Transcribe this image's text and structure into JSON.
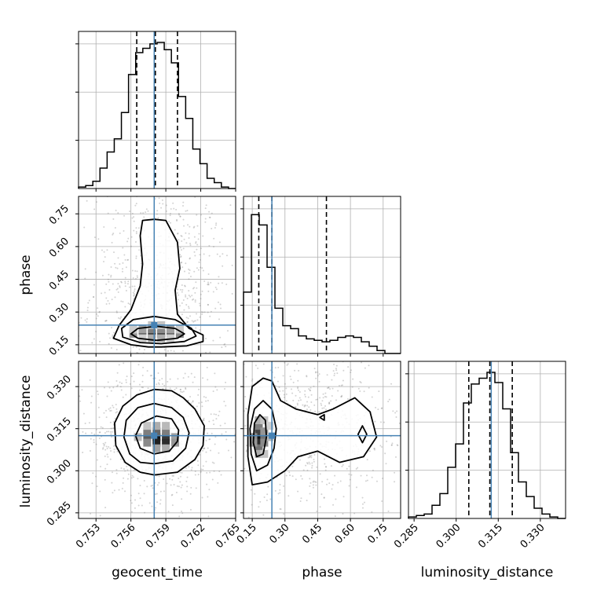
{
  "chart_data": {
    "type": "corner",
    "colors": {
      "truth": "#4682b4",
      "line": "#000000",
      "grid": "#b0b0b0"
    },
    "parameters": [
      {
        "name": "geocent_time",
        "range": [
          0.7515,
          0.765
        ],
        "ticks": [
          0.753,
          0.756,
          0.759,
          0.762,
          0.765
        ],
        "tick_labels": [
          "0.753",
          "0.756",
          "0.759",
          "0.762",
          "0.765"
        ],
        "truth": 0.758,
        "quantiles": [
          0.7565,
          0.7581,
          0.76
        ],
        "hist": [
          0.01,
          0.02,
          0.05,
          0.14,
          0.25,
          0.34,
          0.52,
          0.78,
          0.93,
          0.96,
          0.99,
          1.0,
          0.95,
          0.86,
          0.63,
          0.48,
          0.27,
          0.17,
          0.07,
          0.04,
          0.01,
          0.0
        ],
        "hist_max": 1.0
      },
      {
        "name": "phase",
        "range": [
          0.11,
          0.83
        ],
        "ticks": [
          0.15,
          0.3,
          0.45,
          0.6,
          0.75
        ],
        "tick_labels": [
          "0.15",
          "0.30",
          "0.45",
          "0.60",
          "0.75"
        ],
        "truth": 0.24,
        "quantiles": [
          0.18,
          0.24,
          0.49
        ],
        "hist": [
          0.42,
          0.95,
          0.88,
          0.59,
          0.31,
          0.19,
          0.17,
          0.12,
          0.1,
          0.09,
          0.08,
          0.09,
          0.11,
          0.12,
          0.11,
          0.08,
          0.05,
          0.02,
          0.0,
          0.0
        ],
        "hist_max": 1.0
      },
      {
        "name": "luminosity_distance",
        "range": [
          0.283,
          0.339
        ],
        "ticks": [
          0.285,
          0.3,
          0.315,
          0.33
        ],
        "tick_labels": [
          "0.285",
          "0.300",
          "0.315",
          "0.330"
        ],
        "truth": 0.3125,
        "quantiles": [
          0.3045,
          0.312,
          0.32
        ],
        "hist": [
          0.01,
          0.02,
          0.03,
          0.09,
          0.17,
          0.35,
          0.51,
          0.79,
          0.92,
          0.96,
          1.0,
          0.93,
          0.75,
          0.45,
          0.25,
          0.15,
          0.07,
          0.03,
          0.01,
          0.0
        ],
        "hist_max": 1.0
      }
    ],
    "pairs": [
      {
        "x": "geocent_time",
        "y": "phase",
        "contours": [
          [
            [
              0.7586,
              0.14
            ],
            [
              0.7608,
              0.145
            ],
            [
              0.7622,
              0.165
            ],
            [
              0.7622,
              0.195
            ],
            [
              0.761,
              0.225
            ],
            [
              0.76,
              0.29
            ],
            [
              0.7598,
              0.4
            ],
            [
              0.7602,
              0.5
            ],
            [
              0.76,
              0.62
            ],
            [
              0.7594,
              0.68
            ],
            [
              0.759,
              0.72
            ],
            [
              0.758,
              0.725
            ],
            [
              0.757,
              0.72
            ],
            [
              0.7568,
              0.65
            ],
            [
              0.757,
              0.52
            ],
            [
              0.7568,
              0.42
            ],
            [
              0.756,
              0.31
            ],
            [
              0.755,
              0.24
            ],
            [
              0.7545,
              0.18
            ],
            [
              0.756,
              0.15
            ],
            [
              0.7575,
              0.14
            ],
            [
              0.7586,
              0.14
            ]
          ],
          [
            [
              0.7586,
              0.155
            ],
            [
              0.7606,
              0.165
            ],
            [
              0.7616,
              0.19
            ],
            [
              0.7612,
              0.225
            ],
            [
              0.7598,
              0.265
            ],
            [
              0.758,
              0.28
            ],
            [
              0.7562,
              0.265
            ],
            [
              0.7552,
              0.225
            ],
            [
              0.7553,
              0.185
            ],
            [
              0.7568,
              0.16
            ],
            [
              0.7586,
              0.155
            ]
          ],
          [
            [
              0.7582,
              0.17
            ],
            [
              0.76,
              0.18
            ],
            [
              0.7606,
              0.2
            ],
            [
              0.7598,
              0.225
            ],
            [
              0.7582,
              0.235
            ],
            [
              0.7566,
              0.225
            ],
            [
              0.756,
              0.2
            ],
            [
              0.7566,
              0.18
            ],
            [
              0.7582,
              0.17
            ]
          ]
        ],
        "density": [
          [
            0.7578,
            0.2,
            1.0
          ],
          [
            0.7586,
            0.2,
            0.95
          ],
          [
            0.757,
            0.2,
            0.8
          ],
          [
            0.7594,
            0.2,
            0.8
          ],
          [
            0.7562,
            0.2,
            0.45
          ],
          [
            0.7602,
            0.2,
            0.5
          ],
          [
            0.7578,
            0.22,
            0.55
          ],
          [
            0.7586,
            0.22,
            0.5
          ],
          [
            0.757,
            0.22,
            0.4
          ],
          [
            0.7594,
            0.22,
            0.4
          ],
          [
            0.7578,
            0.18,
            0.35
          ],
          [
            0.7586,
            0.18,
            0.35
          ],
          [
            0.7562,
            0.22,
            0.22
          ],
          [
            0.7602,
            0.22,
            0.22
          ],
          [
            0.7578,
            0.24,
            0.25
          ],
          [
            0.7586,
            0.24,
            0.25
          ],
          [
            0.757,
            0.18,
            0.2
          ],
          [
            0.7594,
            0.18,
            0.2
          ]
        ]
      },
      {
        "x": "geocent_time",
        "y": "luminosity_distance",
        "contours": [
          [
            [
              0.758,
              0.2985
            ],
            [
              0.76,
              0.2995
            ],
            [
              0.7615,
              0.304
            ],
            [
              0.7622,
              0.309
            ],
            [
              0.7623,
              0.316
            ],
            [
              0.7615,
              0.322
            ],
            [
              0.7605,
              0.326
            ],
            [
              0.7595,
              0.3285
            ],
            [
              0.758,
              0.329
            ],
            [
              0.7565,
              0.327
            ],
            [
              0.7553,
              0.323
            ],
            [
              0.7546,
              0.317
            ],
            [
              0.7547,
              0.309
            ],
            [
              0.7555,
              0.303
            ],
            [
              0.7568,
              0.2995
            ],
            [
              0.758,
              0.2985
            ]
          ],
          [
            [
              0.758,
              0.3025
            ],
            [
              0.7596,
              0.3035
            ],
            [
              0.7607,
              0.308
            ],
            [
              0.761,
              0.3135
            ],
            [
              0.7605,
              0.319
            ],
            [
              0.7595,
              0.3225
            ],
            [
              0.758,
              0.324
            ],
            [
              0.7566,
              0.3225
            ],
            [
              0.7556,
              0.318
            ],
            [
              0.7554,
              0.312
            ],
            [
              0.7559,
              0.306
            ],
            [
              0.7568,
              0.303
            ],
            [
              0.758,
              0.3025
            ]
          ],
          [
            [
              0.758,
              0.306
            ],
            [
              0.7593,
              0.307
            ],
            [
              0.76,
              0.3105
            ],
            [
              0.7601,
              0.3145
            ],
            [
              0.7595,
              0.3185
            ],
            [
              0.7582,
              0.3195
            ],
            [
              0.7569,
              0.317
            ],
            [
              0.7564,
              0.3125
            ],
            [
              0.7568,
              0.308
            ],
            [
              0.758,
              0.306
            ]
          ]
        ],
        "density": [
          [
            0.7582,
            0.312,
            1.0
          ],
          [
            0.759,
            0.312,
            0.85
          ],
          [
            0.7582,
            0.31,
            0.95
          ],
          [
            0.759,
            0.31,
            0.9
          ],
          [
            0.7574,
            0.312,
            0.7
          ],
          [
            0.7574,
            0.314,
            0.55
          ],
          [
            0.7582,
            0.314,
            0.65
          ],
          [
            0.759,
            0.314,
            0.55
          ],
          [
            0.7598,
            0.312,
            0.4
          ],
          [
            0.7598,
            0.31,
            0.45
          ],
          [
            0.7582,
            0.316,
            0.35
          ],
          [
            0.7574,
            0.31,
            0.5
          ],
          [
            0.7582,
            0.308,
            0.4
          ],
          [
            0.759,
            0.308,
            0.35
          ],
          [
            0.7566,
            0.312,
            0.3
          ],
          [
            0.759,
            0.316,
            0.3
          ],
          [
            0.7574,
            0.316,
            0.25
          ]
        ]
      },
      {
        "x": "phase",
        "y": "luminosity_distance",
        "contours": [
          [
            [
              0.15,
              0.295
            ],
            [
              0.22,
              0.296
            ],
            [
              0.3,
              0.3
            ],
            [
              0.36,
              0.305
            ],
            [
              0.45,
              0.307
            ],
            [
              0.55,
              0.303
            ],
            [
              0.66,
              0.305
            ],
            [
              0.72,
              0.312
            ],
            [
              0.69,
              0.321
            ],
            [
              0.62,
              0.326
            ],
            [
              0.52,
              0.322
            ],
            [
              0.45,
              0.32
            ],
            [
              0.35,
              0.322
            ],
            [
              0.28,
              0.325
            ],
            [
              0.24,
              0.332
            ],
            [
              0.2,
              0.333
            ],
            [
              0.15,
              0.33
            ],
            [
              0.13,
              0.32
            ],
            [
              0.13,
              0.305
            ],
            [
              0.15,
              0.295
            ]
          ],
          [
            [
              0.17,
              0.3
            ],
            [
              0.22,
              0.302
            ],
            [
              0.25,
              0.308
            ],
            [
              0.26,
              0.315
            ],
            [
              0.24,
              0.322
            ],
            [
              0.2,
              0.325
            ],
            [
              0.16,
              0.322
            ],
            [
              0.14,
              0.315
            ],
            [
              0.145,
              0.306
            ],
            [
              0.17,
              0.3
            ]
          ],
          [
            [
              0.17,
              0.305
            ],
            [
              0.2,
              0.306
            ],
            [
              0.215,
              0.312
            ],
            [
              0.21,
              0.318
            ],
            [
              0.185,
              0.32
            ],
            [
              0.16,
              0.317
            ],
            [
              0.155,
              0.31
            ],
            [
              0.17,
              0.305
            ]
          ]
        ],
        "contours_small": [
          [
            [
              0.46,
              0.319
            ],
            [
              0.48,
              0.32
            ],
            [
              0.48,
              0.318
            ],
            [
              0.46,
              0.319
            ]
          ],
          [
            [
              0.635,
              0.313
            ],
            [
              0.655,
              0.316
            ],
            [
              0.675,
              0.313
            ],
            [
              0.655,
              0.31
            ],
            [
              0.635,
              0.313
            ]
          ]
        ],
        "density": [
          [
            0.18,
            0.312,
            1.0
          ],
          [
            0.18,
            0.31,
            0.9
          ],
          [
            0.18,
            0.314,
            0.8
          ],
          [
            0.18,
            0.308,
            0.6
          ],
          [
            0.18,
            0.316,
            0.55
          ],
          [
            0.205,
            0.312,
            0.6
          ],
          [
            0.205,
            0.31,
            0.5
          ],
          [
            0.205,
            0.314,
            0.45
          ],
          [
            0.155,
            0.312,
            0.5
          ],
          [
            0.155,
            0.31,
            0.45
          ],
          [
            0.18,
            0.318,
            0.35
          ],
          [
            0.18,
            0.306,
            0.35
          ],
          [
            0.23,
            0.312,
            0.3
          ],
          [
            0.205,
            0.318,
            0.25
          ],
          [
            0.205,
            0.306,
            0.25
          ],
          [
            0.23,
            0.316,
            0.2
          ]
        ]
      }
    ]
  }
}
